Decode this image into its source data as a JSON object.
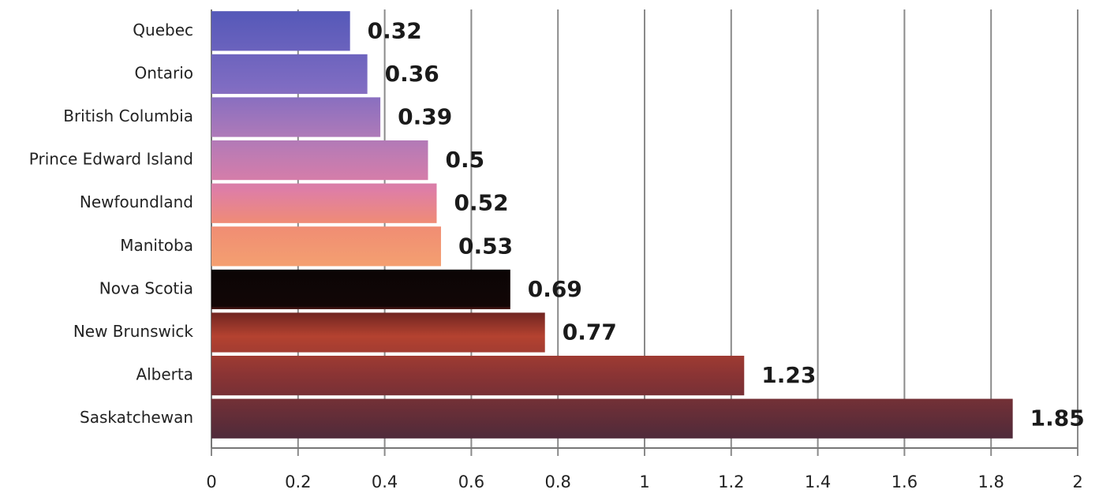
{
  "chart_data": {
    "type": "barh",
    "categories": [
      "Quebec",
      "Ontario",
      "British Columbia",
      "Prince Edward Island",
      "Newfoundland",
      "Manitoba",
      "Nova Scotia",
      "New Brunswick",
      "Alberta",
      "Saskatchewan"
    ],
    "values": [
      0.32,
      0.36,
      0.39,
      0.5,
      0.52,
      0.53,
      0.69,
      0.77,
      1.23,
      1.85
    ],
    "xlim": [
      0,
      2
    ],
    "xticks": [
      0,
      0.2,
      0.4,
      0.6,
      0.8,
      1,
      1.2,
      1.4,
      1.6,
      1.8,
      2
    ],
    "grid": true
  }
}
